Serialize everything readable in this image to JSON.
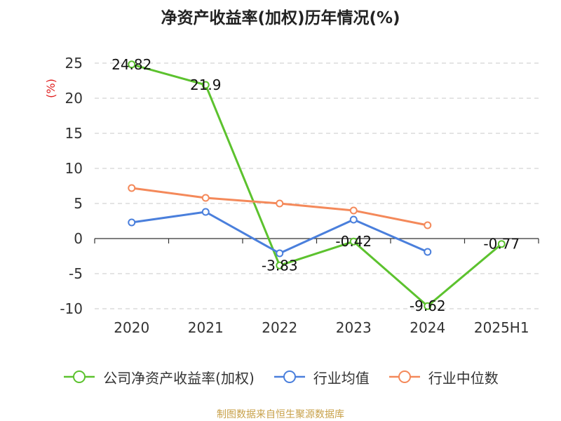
{
  "chart_data": {
    "type": "line",
    "title": "净资产收益率(加权)历年情况(%)",
    "ylabel": "(%)",
    "xlabel": "",
    "categories": [
      "2020",
      "2021",
      "2022",
      "2023",
      "2024",
      "2025H1"
    ],
    "ylim": [
      -10,
      25
    ],
    "yticks": [
      25,
      20,
      15,
      10,
      5,
      0,
      -5,
      -10
    ],
    "grid": true,
    "legend_position": "bottom",
    "series": [
      {
        "name": "公司净资产收益率(加权)",
        "color": "#5cc22e",
        "values": [
          24.82,
          21.9,
          -3.83,
          -0.42,
          -9.62,
          -0.77
        ],
        "labels": [
          "24.82",
          "21.9",
          "-3.83",
          "-0.42",
          "-9.62",
          "-0.77"
        ]
      },
      {
        "name": "行业均值",
        "color": "#4a7fdc",
        "values": [
          2.3,
          3.8,
          -2.1,
          2.7,
          -1.9,
          null
        ]
      },
      {
        "name": "行业中位数",
        "color": "#f4895a",
        "values": [
          7.2,
          5.8,
          5.0,
          4.0,
          1.9,
          null
        ]
      }
    ]
  },
  "source": "制图数据来自恒生聚源数据库"
}
